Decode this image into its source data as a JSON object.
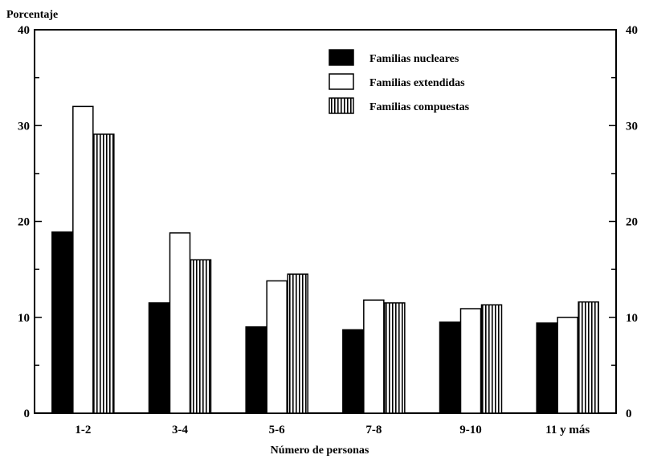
{
  "chart_data": {
    "type": "bar",
    "ylabel": "Porcentaje",
    "xlabel": "Número de personas",
    "ylim": [
      0,
      40
    ],
    "yticks": [
      0,
      10,
      20,
      30,
      40
    ],
    "categories": [
      "1-2",
      "3-4",
      "5-6",
      "7-8",
      "9-10",
      "11 y más"
    ],
    "series": [
      {
        "name": "Familias nucleares",
        "fill": "solid",
        "values": [
          18.9,
          11.5,
          9.0,
          8.7,
          9.5,
          9.4
        ]
      },
      {
        "name": "Familias extendidas",
        "fill": "white",
        "values": [
          32.0,
          18.8,
          13.8,
          11.8,
          10.9,
          10.0
        ]
      },
      {
        "name": "Familias compuestas",
        "fill": "vertical-stripes",
        "values": [
          29.1,
          16.0,
          14.5,
          11.5,
          11.3,
          11.6
        ]
      }
    ],
    "legend_position": "top-right",
    "grid": false,
    "colors": {
      "ink": "#000000",
      "paper": "#ffffff"
    }
  }
}
